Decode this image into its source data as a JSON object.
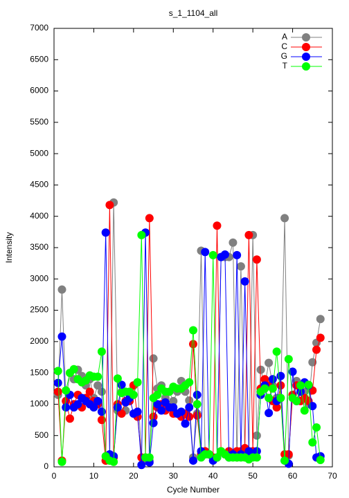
{
  "chart_data": {
    "type": "line",
    "title": "s_1_1104_all",
    "xlabel": "Cycle Number",
    "ylabel": "Intensity",
    "x": [
      1,
      2,
      3,
      4,
      5,
      6,
      7,
      8,
      9,
      10,
      11,
      12,
      13,
      14,
      15,
      16,
      17,
      18,
      19,
      20,
      21,
      22,
      23,
      24,
      25,
      26,
      27,
      28,
      29,
      30,
      31,
      32,
      33,
      34,
      35,
      36,
      37,
      38,
      39,
      40,
      41,
      42,
      43,
      44,
      45,
      46,
      47,
      48,
      49,
      50,
      51,
      52,
      53,
      54,
      55,
      56,
      57,
      58,
      59,
      60,
      61,
      62,
      63,
      64,
      65,
      66,
      67
    ],
    "series": [
      {
        "name": "A",
        "color": "#808080",
        "values": [
          1150,
          2830,
          1050,
          1500,
          1400,
          1550,
          1450,
          1300,
          1400,
          1100,
          1300,
          1200,
          100,
          100,
          4220,
          900,
          1200,
          900,
          1150,
          1300,
          1350,
          150,
          100,
          100,
          1730,
          1250,
          1300,
          1100,
          1200,
          1050,
          1200,
          1370,
          1200,
          1060,
          150,
          850,
          3450,
          200,
          200,
          150,
          150,
          3350,
          3350,
          3350,
          3580,
          150,
          3200,
          200,
          200,
          3700,
          500,
          1550,
          1300,
          1660,
          1300,
          1100,
          1100,
          3970,
          180,
          1150,
          1370,
          1200,
          1200,
          1000,
          1670,
          1980,
          2360
        ]
      },
      {
        "name": "C",
        "color": "#ff0000",
        "values": [
          1200,
          100,
          1050,
          770,
          1000,
          1150,
          950,
          1100,
          1200,
          1050,
          1000,
          750,
          100,
          4180,
          150,
          1000,
          850,
          1050,
          1050,
          1300,
          800,
          150,
          150,
          3970,
          800,
          950,
          1000,
          900,
          950,
          850,
          850,
          800,
          850,
          800,
          1960,
          820,
          200,
          250,
          200,
          150,
          3850,
          250,
          200,
          250,
          200,
          250,
          250,
          300,
          3700,
          250,
          3310,
          1250,
          1400,
          1300,
          1050,
          950,
          1300,
          200,
          200,
          1150,
          1300,
          1050,
          1100,
          1050,
          1220,
          1870,
          2060
        ]
      },
      {
        "name": "G",
        "color": "#0000ff",
        "values": [
          1340,
          2080,
          950,
          1150,
          950,
          1000,
          1100,
          1050,
          1000,
          950,
          1050,
          880,
          3740,
          200,
          170,
          950,
          1310,
          1030,
          1100,
          850,
          880,
          30,
          3740,
          70,
          700,
          1000,
          900,
          1030,
          950,
          950,
          850,
          880,
          690,
          950,
          100,
          1150,
          250,
          3430,
          200,
          100,
          150,
          3350,
          3390,
          150,
          200,
          3380,
          200,
          2960,
          250,
          200,
          250,
          1150,
          1300,
          860,
          1400,
          1050,
          1450,
          100,
          50,
          1520,
          1050,
          1200,
          1350,
          1300,
          970,
          150,
          170
        ]
      },
      {
        "name": "T",
        "color": "#00ff00",
        "values": [
          1530,
          80,
          1220,
          1500,
          1560,
          1400,
          1350,
          1380,
          1460,
          1440,
          1440,
          1840,
          170,
          100,
          80,
          1410,
          1180,
          1200,
          1200,
          1150,
          1350,
          3700,
          150,
          150,
          1100,
          1150,
          1250,
          1200,
          1200,
          1280,
          1250,
          1250,
          1300,
          1350,
          2180,
          1000,
          150,
          200,
          200,
          3380,
          150,
          250,
          200,
          150,
          150,
          150,
          150,
          150,
          120,
          150,
          150,
          1200,
          1250,
          1100,
          1250,
          1840,
          1100,
          100,
          1720,
          1100,
          1050,
          1300,
          900,
          1310,
          390,
          630,
          110
        ]
      }
    ],
    "xlim": [
      0,
      70
    ],
    "xticks": [
      0,
      10,
      20,
      30,
      40,
      50,
      60,
      70
    ],
    "ylim": [
      0,
      7000
    ],
    "yticks": [
      0,
      500,
      1000,
      1500,
      2000,
      2500,
      3000,
      3500,
      4000,
      4500,
      5000,
      5500,
      6000,
      6500,
      7000
    ],
    "legend": "top right"
  }
}
